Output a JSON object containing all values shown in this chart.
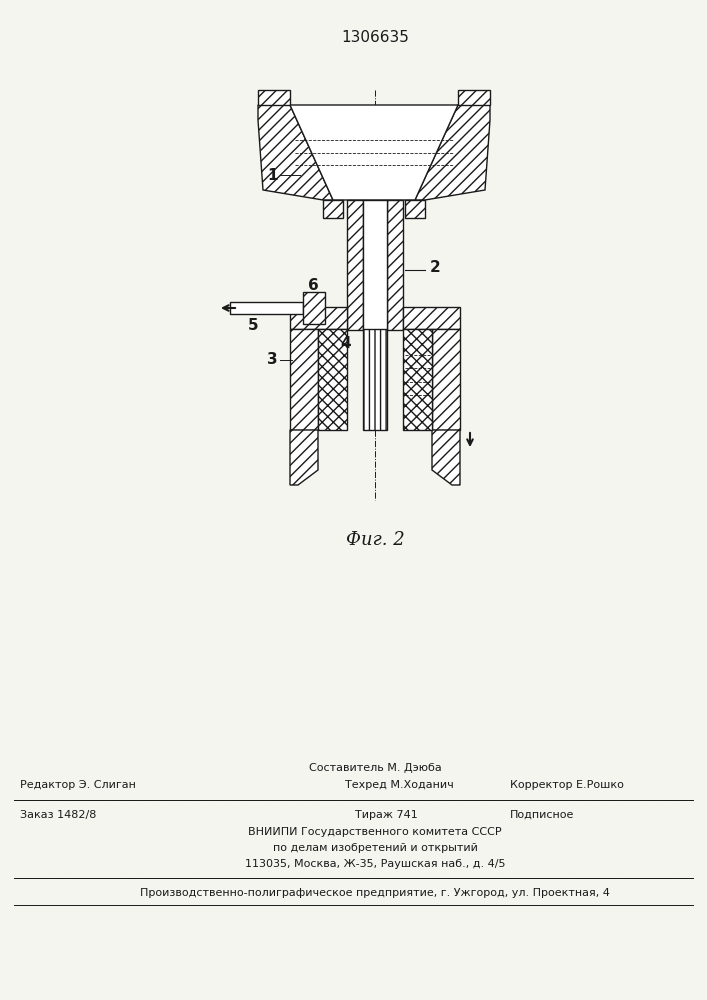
{
  "title_number": "1306635",
  "fig_label": "Фиг. 2",
  "bg_color": "#f5f5f0",
  "line_color": "#1a1a1a",
  "footer": {
    "sestavitel": "Составитель М. Дэюба",
    "redaktor": "Редактор Э. Слиган",
    "tehred": "Техред М.Ходанич",
    "korrektor": "Корректор Е.Рошко",
    "zakaz": "Заказ 1482/8",
    "tirazh": "Тираж 741",
    "podpisnoe": "Подписное",
    "vniipи": "ВНИИПИ Государственного комитета СССР",
    "po_delam": "по делам изобретений и открытий",
    "address": "113035, Москва, Ж-35, Раушская наб., д. 4/5",
    "predpriyatie": "Производственно-полиграфическое предприятие, г. Ужгород, ул. Проектная, 4"
  }
}
